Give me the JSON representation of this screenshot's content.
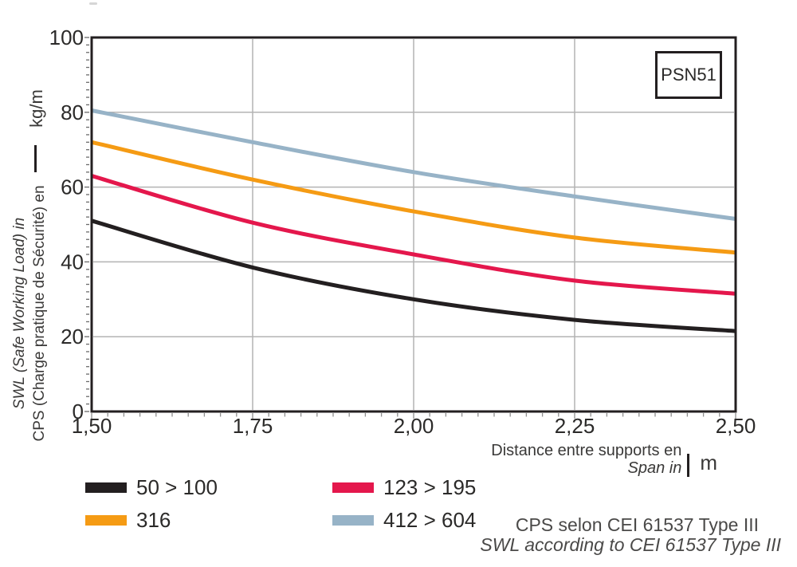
{
  "badge": {
    "label": "PSN51"
  },
  "y_axis": {
    "title_fr": "CPS (Charge pratique de Sécurité) en",
    "title_en": "SWL (Safe Working Load) in",
    "unit": "kg/m"
  },
  "x_axis": {
    "title_fr": "Distance entre supports en",
    "title_en": "Span in",
    "unit": "m"
  },
  "footer": {
    "line_fr": "CPS selon CEI 61537 Type III",
    "line_en": "SWL according to CEI 61537 Type III"
  },
  "colors": {
    "frame": "#231f20",
    "grid": "#b3b3b3",
    "x_tick": "#8f8f8f",
    "y_tick": "#6b6b6b",
    "text": "#2b2a29"
  },
  "chart_data": {
    "type": "line",
    "title": "",
    "xlabel": "Distance entre supports en / Span in (m)",
    "ylabel": "CPS (Charge pratique de Sécurité) / SWL (Safe Working Load) (kg/m)",
    "xlim": [
      1.5,
      2.5
    ],
    "ylim": [
      0,
      100
    ],
    "x": [
      1.5,
      1.75,
      2.0,
      2.25,
      2.5
    ],
    "x_tick_labels": [
      "1,50",
      "1,75",
      "2,00",
      "2,25",
      "2,50"
    ],
    "y_ticks": [
      0,
      20,
      40,
      60,
      80,
      100
    ],
    "x_minor_step": 0.025,
    "y_minor_step": 2,
    "grid": true,
    "legend_position": "bottom-left",
    "series": [
      {
        "name": "50 > 100",
        "color": "#231f20",
        "values": [
          51.0,
          38.5,
          30.0,
          24.5,
          21.5
        ]
      },
      {
        "name": "316",
        "color": "#f59b14",
        "values": [
          72.0,
          62.0,
          53.5,
          46.5,
          42.5
        ]
      },
      {
        "name": "123 > 195",
        "color": "#e4174c",
        "values": [
          63.0,
          50.5,
          42.0,
          35.0,
          31.5
        ]
      },
      {
        "name": "412 > 604",
        "color": "#97b3c7",
        "values": [
          80.5,
          72.0,
          64.0,
          57.5,
          51.5
        ]
      }
    ]
  }
}
